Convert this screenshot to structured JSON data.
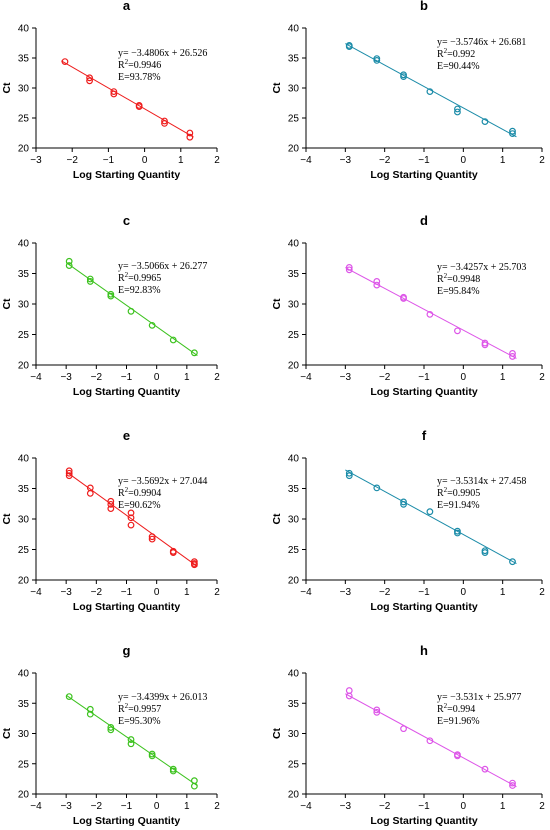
{
  "figure": {
    "axis_color": "#000000"
  },
  "chart_data": [
    {
      "type": "scatter",
      "panel_label": "a",
      "color": "#ee1c1c",
      "xlabel": "Log Starting Quantity",
      "ylabel": "Ct",
      "xlim": [
        -3,
        2
      ],
      "ylim": [
        20,
        40
      ],
      "xticks": [
        -3,
        -2,
        -1,
        0,
        1,
        2
      ],
      "yticks": [
        20,
        25,
        30,
        35,
        40
      ],
      "trendline": {
        "slope": -3.4806,
        "intercept": 26.526
      },
      "annotation": {
        "equation": "y= −3.4806x + 26.526",
        "r2_prefix": "R",
        "r2_sup": "2",
        "r2_value": "=0.9946",
        "efficiency": "E=93.78%"
      },
      "points": [
        {
          "x": -2.2,
          "y": 34.4
        },
        {
          "x": -1.52,
          "y": 31.7
        },
        {
          "x": -1.52,
          "y": 31.2
        },
        {
          "x": -0.85,
          "y": 29.4
        },
        {
          "x": -0.85,
          "y": 29.0
        },
        {
          "x": -0.15,
          "y": 27.1
        },
        {
          "x": -0.15,
          "y": 26.9
        },
        {
          "x": 0.55,
          "y": 24.5
        },
        {
          "x": 0.55,
          "y": 24.1
        },
        {
          "x": 1.25,
          "y": 22.5
        },
        {
          "x": 1.25,
          "y": 21.8
        }
      ]
    },
    {
      "type": "scatter",
      "panel_label": "b",
      "color": "#1a8ba8",
      "xlabel": "Log Starting Quantity",
      "ylabel": "Ct",
      "xlim": [
        -4,
        2
      ],
      "ylim": [
        20,
        40
      ],
      "xticks": [
        -4,
        -3,
        -2,
        -1,
        0,
        1,
        2
      ],
      "yticks": [
        20,
        25,
        30,
        35,
        40
      ],
      "trendline": {
        "slope": -3.5746,
        "intercept": 26.681
      },
      "annotation": {
        "equation": "y= −3.5746x + 26.681",
        "r2_prefix": "R",
        "r2_sup": "2",
        "r2_value": "=0.992",
        "efficiency": "E=90.44%"
      },
      "points": [
        {
          "x": -2.9,
          "y": 37.1
        },
        {
          "x": -2.9,
          "y": 36.9
        },
        {
          "x": -2.2,
          "y": 34.9
        },
        {
          "x": -2.2,
          "y": 34.6
        },
        {
          "x": -1.52,
          "y": 32.2
        },
        {
          "x": -1.52,
          "y": 31.9
        },
        {
          "x": -0.85,
          "y": 29.4
        },
        {
          "x": -0.15,
          "y": 26.5
        },
        {
          "x": -0.15,
          "y": 26.0
        },
        {
          "x": 0.55,
          "y": 24.4
        },
        {
          "x": 1.25,
          "y": 22.8
        },
        {
          "x": 1.25,
          "y": 22.4
        }
      ]
    },
    {
      "type": "scatter",
      "panel_label": "c",
      "color": "#3cc21e",
      "xlabel": "Log Starting Quantity",
      "ylabel": "Ct",
      "xlim": [
        -4,
        2
      ],
      "ylim": [
        20,
        40
      ],
      "xticks": [
        -4,
        -3,
        -2,
        -1,
        0,
        1,
        2
      ],
      "yticks": [
        20,
        25,
        30,
        35,
        40
      ],
      "trendline": {
        "slope": -3.5066,
        "intercept": 26.277
      },
      "annotation": {
        "equation": "y= −3.5066x + 26.277",
        "r2_prefix": "R",
        "r2_sup": "2",
        "r2_value": "=0.9965",
        "efficiency": "E=92.83%"
      },
      "points": [
        {
          "x": -2.9,
          "y": 37.0
        },
        {
          "x": -2.9,
          "y": 36.3
        },
        {
          "x": -2.2,
          "y": 34.1
        },
        {
          "x": -2.2,
          "y": 33.7
        },
        {
          "x": -1.52,
          "y": 31.6
        },
        {
          "x": -1.52,
          "y": 31.3
        },
        {
          "x": -0.85,
          "y": 28.8
        },
        {
          "x": -0.15,
          "y": 26.5
        },
        {
          "x": 0.55,
          "y": 24.1
        },
        {
          "x": 1.25,
          "y": 22.0
        }
      ]
    },
    {
      "type": "scatter",
      "panel_label": "d",
      "color": "#dd55e8",
      "xlabel": "Log Starting Quantity",
      "ylabel": "Ct",
      "xlim": [
        -4,
        2
      ],
      "ylim": [
        20,
        40
      ],
      "xticks": [
        -4,
        -3,
        -2,
        -1,
        0,
        1,
        2
      ],
      "yticks": [
        20,
        25,
        30,
        35,
        40
      ],
      "trendline": {
        "slope": -3.4257,
        "intercept": 25.703
      },
      "annotation": {
        "equation": "y= −3.4257x + 25.703",
        "r2_prefix": "R",
        "r2_sup": "2",
        "r2_value": "=0.9948",
        "efficiency": "E=95.84%"
      },
      "points": [
        {
          "x": -2.9,
          "y": 36.0
        },
        {
          "x": -2.9,
          "y": 35.6
        },
        {
          "x": -2.2,
          "y": 33.7
        },
        {
          "x": -2.2,
          "y": 33.1
        },
        {
          "x": -1.52,
          "y": 31.1
        },
        {
          "x": -1.52,
          "y": 30.9
        },
        {
          "x": -0.85,
          "y": 28.3
        },
        {
          "x": -0.15,
          "y": 25.6
        },
        {
          "x": 0.55,
          "y": 23.6
        },
        {
          "x": 0.55,
          "y": 23.3
        },
        {
          "x": 1.25,
          "y": 21.9
        },
        {
          "x": 1.25,
          "y": 21.4
        }
      ]
    },
    {
      "type": "scatter",
      "panel_label": "e",
      "color": "#ee1c1c",
      "xlabel": "Log Starting Quantity",
      "ylabel": "Ct",
      "xlim": [
        -4,
        2
      ],
      "ylim": [
        20,
        40
      ],
      "xticks": [
        -4,
        -3,
        -2,
        -1,
        0,
        1,
        2
      ],
      "yticks": [
        20,
        25,
        30,
        35,
        40
      ],
      "trendline": {
        "slope": -3.5692,
        "intercept": 27.044
      },
      "annotation": {
        "equation": "y= −3.5692x + 27.044",
        "r2_prefix": "R",
        "r2_sup": "2",
        "r2_value": "=0.9904",
        "efficiency": "E=90.62%"
      },
      "points": [
        {
          "x": -2.9,
          "y": 37.9
        },
        {
          "x": -2.9,
          "y": 37.5
        },
        {
          "x": -2.9,
          "y": 37.1
        },
        {
          "x": -2.2,
          "y": 35.1
        },
        {
          "x": -2.2,
          "y": 34.2
        },
        {
          "x": -1.52,
          "y": 32.9
        },
        {
          "x": -1.52,
          "y": 32.4
        },
        {
          "x": -1.52,
          "y": 31.7
        },
        {
          "x": -0.85,
          "y": 31.0
        },
        {
          "x": -0.85,
          "y": 30.2
        },
        {
          "x": -0.85,
          "y": 29.0
        },
        {
          "x": -0.15,
          "y": 27.1
        },
        {
          "x": -0.15,
          "y": 26.7
        },
        {
          "x": 0.55,
          "y": 24.7
        },
        {
          "x": 0.55,
          "y": 24.5
        },
        {
          "x": 1.25,
          "y": 23.0
        },
        {
          "x": 1.25,
          "y": 22.7
        },
        {
          "x": 1.25,
          "y": 22.5
        }
      ]
    },
    {
      "type": "scatter",
      "panel_label": "f",
      "color": "#1a8ba8",
      "xlabel": "Log Starting Quantity",
      "ylabel": "Ct",
      "xlim": [
        -4,
        2
      ],
      "ylim": [
        20,
        40
      ],
      "xticks": [
        -4,
        -3,
        -2,
        -1,
        0,
        1,
        2
      ],
      "yticks": [
        20,
        25,
        30,
        35,
        40
      ],
      "trendline": {
        "slope": -3.5314,
        "intercept": 27.458
      },
      "annotation": {
        "equation": "y= −3.5314x + 27.458",
        "r2_prefix": "R",
        "r2_sup": "2",
        "r2_value": "=0.9905",
        "efficiency": "E=91.94%"
      },
      "points": [
        {
          "x": -2.9,
          "y": 37.5
        },
        {
          "x": -2.9,
          "y": 37.1
        },
        {
          "x": -2.2,
          "y": 35.1
        },
        {
          "x": -1.52,
          "y": 32.8
        },
        {
          "x": -1.52,
          "y": 32.4
        },
        {
          "x": -0.85,
          "y": 31.2
        },
        {
          "x": -0.15,
          "y": 28.0
        },
        {
          "x": -0.15,
          "y": 27.7
        },
        {
          "x": 0.55,
          "y": 24.8
        },
        {
          "x": 0.55,
          "y": 24.5
        },
        {
          "x": 1.25,
          "y": 23.0
        }
      ]
    },
    {
      "type": "scatter",
      "panel_label": "g",
      "color": "#3cc21e",
      "xlabel": "Log Starting Quantity",
      "ylabel": "Ct",
      "xlim": [
        -4,
        2
      ],
      "ylim": [
        20,
        40
      ],
      "xticks": [
        -4,
        -3,
        -2,
        -1,
        0,
        1,
        2
      ],
      "yticks": [
        20,
        25,
        30,
        35,
        40
      ],
      "trendline": {
        "slope": -3.4399,
        "intercept": 26.013
      },
      "annotation": {
        "equation": "y= −3.4399x + 26.013",
        "r2_prefix": "R",
        "r2_sup": "2",
        "r2_value": "=0.9957",
        "efficiency": "E=95.30%"
      },
      "points": [
        {
          "x": -2.9,
          "y": 36.1
        },
        {
          "x": -2.2,
          "y": 34.0
        },
        {
          "x": -2.2,
          "y": 33.2
        },
        {
          "x": -1.52,
          "y": 31.0
        },
        {
          "x": -1.52,
          "y": 30.6
        },
        {
          "x": -0.85,
          "y": 29.0
        },
        {
          "x": -0.85,
          "y": 28.3
        },
        {
          "x": -0.15,
          "y": 26.6
        },
        {
          "x": -0.15,
          "y": 26.3
        },
        {
          "x": 0.55,
          "y": 24.1
        },
        {
          "x": 0.55,
          "y": 23.8
        },
        {
          "x": 1.25,
          "y": 22.2
        },
        {
          "x": 1.25,
          "y": 21.3
        }
      ]
    },
    {
      "type": "scatter",
      "panel_label": "h",
      "color": "#dd55e8",
      "xlabel": "Log Starting Quantity",
      "ylabel": "Ct",
      "xlim": [
        -4,
        2
      ],
      "ylim": [
        20,
        40
      ],
      "xticks": [
        -4,
        -3,
        -2,
        -1,
        0,
        1,
        2
      ],
      "yticks": [
        20,
        25,
        30,
        35,
        40
      ],
      "trendline": {
        "slope": -3.531,
        "intercept": 25.977
      },
      "annotation": {
        "equation": "y= −3.531x + 25.977",
        "r2_prefix": "R",
        "r2_sup": "2",
        "r2_value": "=0.994",
        "efficiency": "E=91.96%"
      },
      "points": [
        {
          "x": -2.9,
          "y": 37.1
        },
        {
          "x": -2.9,
          "y": 36.2
        },
        {
          "x": -2.2,
          "y": 33.9
        },
        {
          "x": -2.2,
          "y": 33.5
        },
        {
          "x": -1.52,
          "y": 30.8
        },
        {
          "x": -0.85,
          "y": 28.8
        },
        {
          "x": -0.15,
          "y": 26.5
        },
        {
          "x": -0.15,
          "y": 26.3
        },
        {
          "x": 0.55,
          "y": 24.1
        },
        {
          "x": 1.25,
          "y": 21.8
        },
        {
          "x": 1.25,
          "y": 21.4
        }
      ]
    }
  ]
}
